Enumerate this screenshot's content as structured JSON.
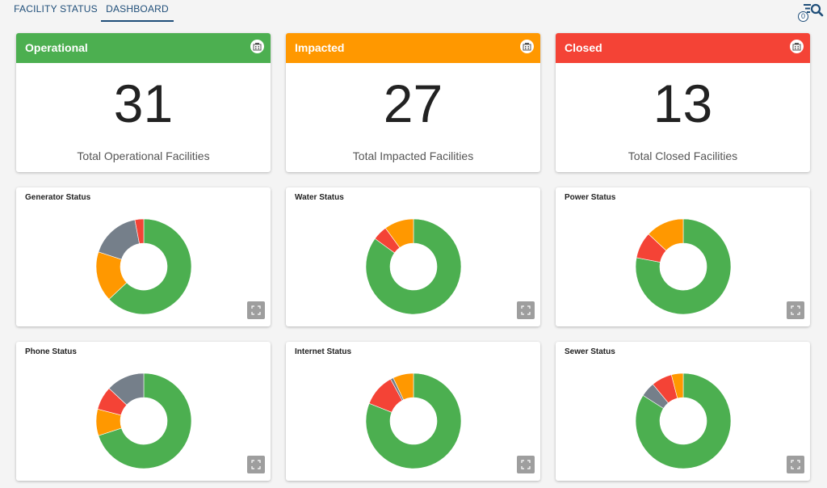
{
  "nav": {
    "tabs": [
      {
        "label": "FACILITY STATUS"
      },
      {
        "label": "DASHBOARD"
      }
    ],
    "filter_count": "0"
  },
  "colors": {
    "operational": "#4caf50",
    "impacted": "#ff9800",
    "closed": "#f44336",
    "unknown": "#757f8a"
  },
  "stats": [
    {
      "title": "Operational",
      "value": "31",
      "label": "Total Operational Facilities"
    },
    {
      "title": "Impacted",
      "value": "27",
      "label": "Total Impacted Facilities"
    },
    {
      "title": "Closed",
      "value": "13",
      "label": "Total Closed Facilities"
    }
  ],
  "chart_data": [
    {
      "type": "pie",
      "title": "Generator Status",
      "slices": [
        {
          "color": "#4caf50",
          "value": 63
        },
        {
          "color": "#ff9800",
          "value": 17
        },
        {
          "color": "#757f8a",
          "value": 17
        },
        {
          "color": "#f44336",
          "value": 3
        }
      ]
    },
    {
      "type": "pie",
      "title": "Water Status",
      "slices": [
        {
          "color": "#4caf50",
          "value": 85
        },
        {
          "color": "#f44336",
          "value": 5
        },
        {
          "color": "#ff9800",
          "value": 10
        }
      ]
    },
    {
      "type": "pie",
      "title": "Power Status",
      "slices": [
        {
          "color": "#4caf50",
          "value": 78
        },
        {
          "color": "#f44336",
          "value": 9
        },
        {
          "color": "#ff9800",
          "value": 13
        }
      ]
    },
    {
      "type": "pie",
      "title": "Phone Status",
      "slices": [
        {
          "color": "#4caf50",
          "value": 70
        },
        {
          "color": "#ff9800",
          "value": 9
        },
        {
          "color": "#f44336",
          "value": 8
        },
        {
          "color": "#757f8a",
          "value": 13
        }
      ]
    },
    {
      "type": "pie",
      "title": "Internet Status",
      "slices": [
        {
          "color": "#4caf50",
          "value": 81
        },
        {
          "color": "#f44336",
          "value": 11
        },
        {
          "color": "#757f8a",
          "value": 1
        },
        {
          "color": "#ff9800",
          "value": 7
        }
      ]
    },
    {
      "type": "pie",
      "title": "Sewer Status",
      "slices": [
        {
          "color": "#4caf50",
          "value": 84
        },
        {
          "color": "#757f8a",
          "value": 5
        },
        {
          "color": "#f44336",
          "value": 7
        },
        {
          "color": "#ff9800",
          "value": 4
        }
      ]
    }
  ]
}
